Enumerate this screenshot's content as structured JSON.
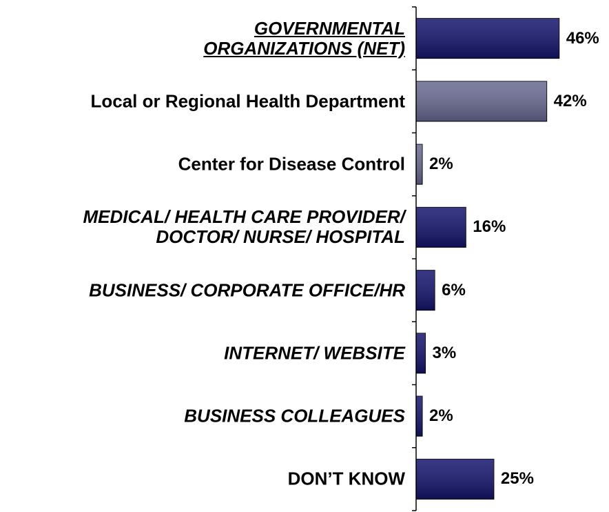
{
  "chart_data": {
    "type": "bar",
    "orientation": "horizontal",
    "categories": [
      "GOVERNMENTAL ORGANIZATIONS (NET)",
      "Local or Regional Health Department",
      "Center for Disease Control",
      "MEDICAL/ HEALTH CARE PROVIDER/ DOCTOR/ NURSE/ HOSPITAL",
      "BUSINESS/ CORPORATE OFFICE/HR",
      "INTERNET/ WEBSITE",
      "BUSINESS COLLEAGUES",
      "DON’T KNOW"
    ],
    "values": [
      46,
      42,
      2,
      16,
      6,
      3,
      2,
      25
    ],
    "value_labels": [
      "46%",
      "42%",
      "2%",
      "16%",
      "6%",
      "3%",
      "2%",
      "25%"
    ],
    "colors": [
      "#14146e",
      "#6a6a94",
      "#6a6a94",
      "#14146e",
      "#14146e",
      "#14146e",
      "#14146e",
      "#14146e"
    ],
    "xlim": [
      0,
      62
    ]
  }
}
